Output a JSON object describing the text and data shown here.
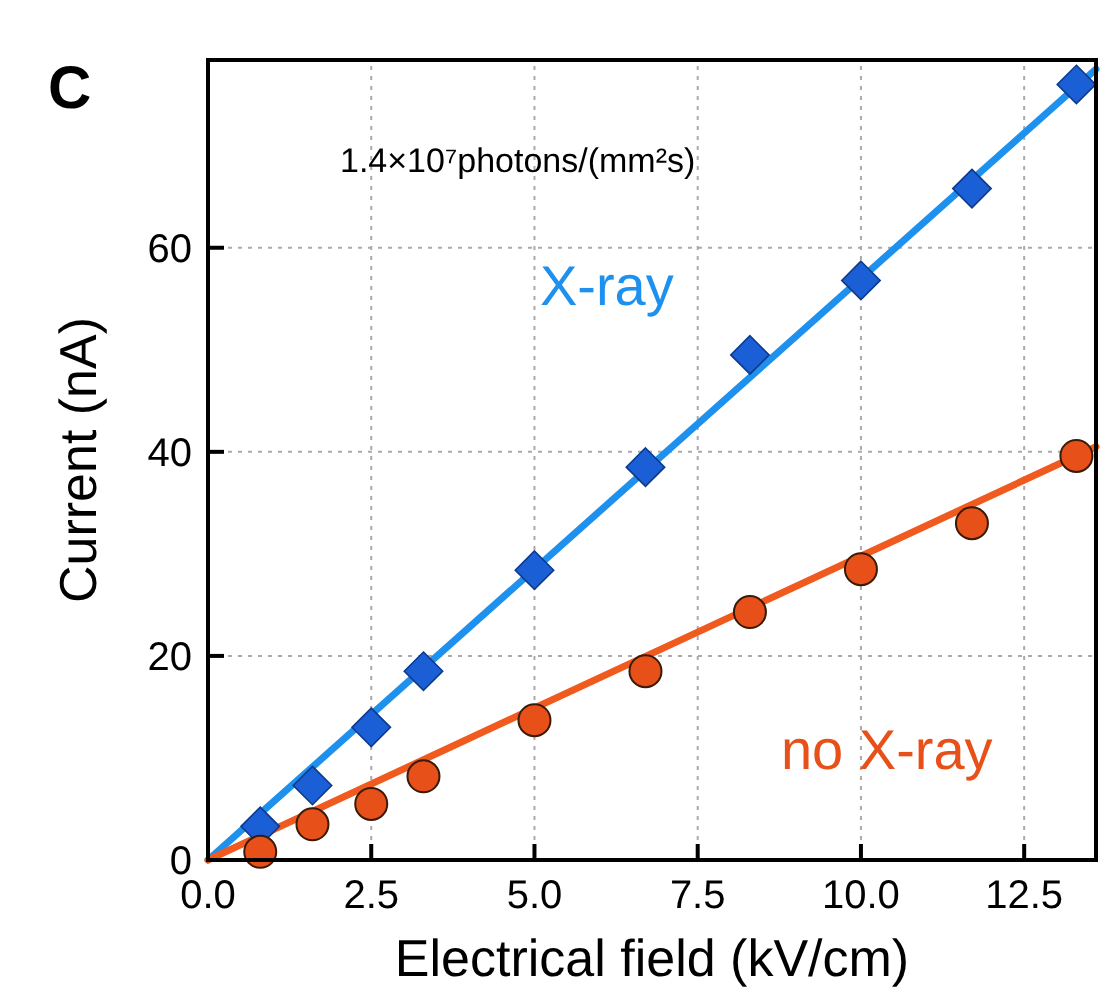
{
  "chart_data": {
    "type": "scatter",
    "xlabel": "Electrical field (kV/cm)",
    "ylabel": "Current (nA)",
    "annotations": [
      "C",
      "1.4×10⁷photons/(mm²s)"
    ],
    "xlim": [
      0,
      13.6
    ],
    "xticks": [
      {
        "value": 0,
        "label": "0.0"
      },
      {
        "value": 2.5,
        "label": "2.5"
      },
      {
        "value": 5,
        "label": "5.0"
      },
      {
        "value": 7.5,
        "label": "7.5"
      },
      {
        "value": 10,
        "label": "10.0"
      },
      {
        "value": 12.5,
        "label": "12.5"
      }
    ],
    "ylim": [
      0,
      78.4
    ],
    "yticks": [
      0,
      20,
      40,
      60
    ],
    "grid": true,
    "series": [
      {
        "type": "line",
        "color": "#1e90ee",
        "marker": "none",
        "x": [
          0,
          13.6
        ],
        "values": [
          0,
          77.5
        ]
      },
      {
        "type": "line",
        "color": "#f05a1e",
        "marker": "none",
        "x": [
          0,
          13.6
        ],
        "values": [
          0,
          40.5
        ]
      },
      {
        "name": "X-ray",
        "color": "#1a5fd6",
        "marker": "diamond",
        "x": [
          0.8,
          1.6,
          2.5,
          3.3,
          5.0,
          6.7,
          8.3,
          10.0,
          11.7,
          13.3
        ],
        "values": [
          3.3,
          7.3,
          13,
          18.5,
          28.4,
          38.5,
          49.5,
          56.8,
          65.8,
          76
        ]
      },
      {
        "name": "no X-ray",
        "color": "#e8501a",
        "marker": "circle",
        "x": [
          0.8,
          1.6,
          2.5,
          3.3,
          5.0,
          6.7,
          8.3,
          10.0,
          11.7,
          13.3
        ],
        "values": [
          0.8,
          3.5,
          5.5,
          8.2,
          13.7,
          18.5,
          24.3,
          28.5,
          33,
          39.6
        ]
      }
    ]
  }
}
